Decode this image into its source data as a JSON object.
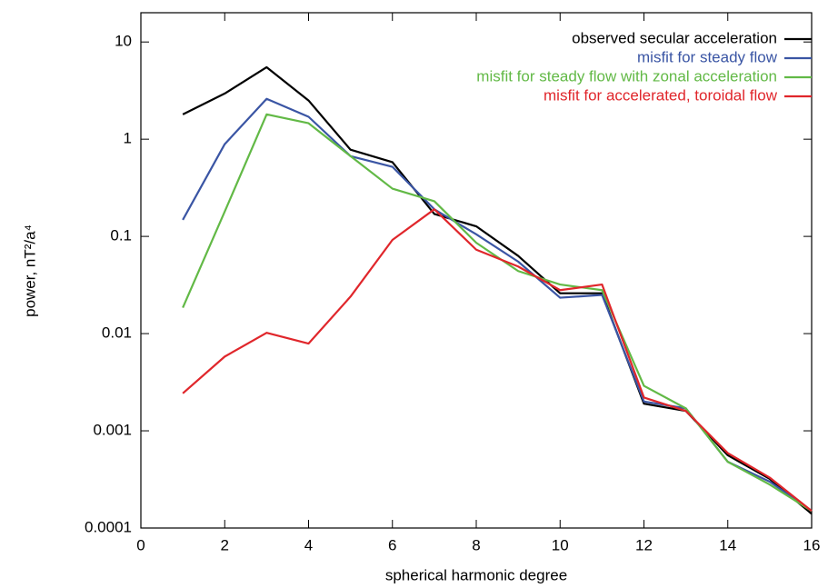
{
  "chart_data": {
    "type": "line",
    "xlabel": "spherical harmonic degree",
    "ylabel": "power, nT²/a⁴",
    "x": [
      1,
      2,
      3,
      4,
      5,
      6,
      7,
      8,
      9,
      10,
      11,
      12,
      13,
      14,
      15,
      16
    ],
    "series": [
      {
        "name": "observed secular acceleration",
        "color": "#000000",
        "values": [
          1.8,
          2.95,
          5.5,
          2.5,
          0.78,
          0.58,
          0.17,
          0.127,
          0.063,
          0.026,
          0.026,
          0.0019,
          0.0016,
          0.00056,
          0.00032,
          0.00014
        ]
      },
      {
        "name": "misfit for steady flow",
        "color": "#3a55a4",
        "values": [
          0.148,
          0.89,
          2.6,
          1.7,
          0.67,
          0.52,
          0.19,
          0.105,
          0.055,
          0.0234,
          0.025,
          0.002,
          0.0017,
          0.00048,
          0.0003,
          0.00015
        ]
      },
      {
        "name": "misfit for steady flow with zonal acceleration",
        "color": "#62b946",
        "values": [
          0.0185,
          0.18,
          1.8,
          1.46,
          0.67,
          0.31,
          0.23,
          0.086,
          0.044,
          0.032,
          0.028,
          0.0029,
          0.0017,
          0.00048,
          0.00028,
          0.00015
        ]
      },
      {
        "name": "misfit for accelerated, toroidal flow",
        "color": "#e0262b",
        "values": [
          0.00243,
          0.0058,
          0.0102,
          0.0079,
          0.024,
          0.092,
          0.19,
          0.073,
          0.049,
          0.028,
          0.032,
          0.0022,
          0.0016,
          0.00059,
          0.00033,
          0.00015
        ]
      }
    ],
    "xlim": [
      0,
      16
    ],
    "xticks": [
      0,
      2,
      4,
      6,
      8,
      10,
      12,
      14,
      16
    ],
    "ylim": [
      0.0001,
      20
    ],
    "yticks": [
      0.0001,
      0.001,
      0.01,
      0.1,
      1,
      10
    ],
    "log_y": true,
    "legend": "top-right"
  }
}
